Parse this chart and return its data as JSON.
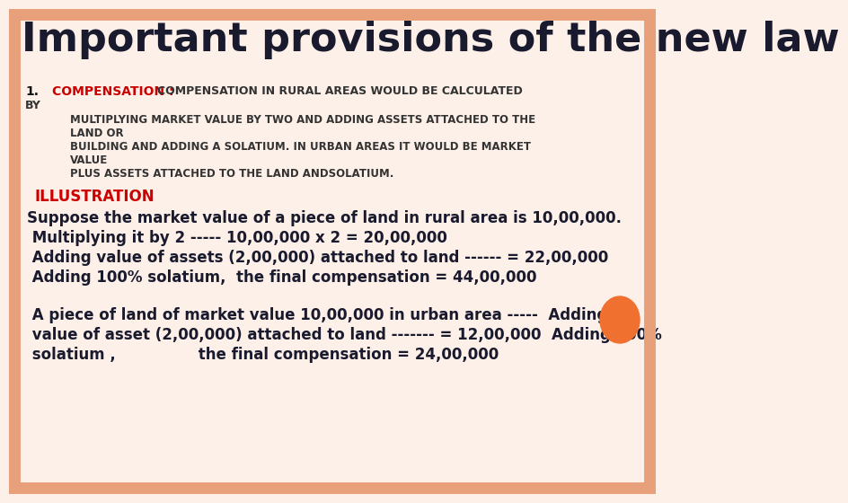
{
  "title": "Important provisions of the new law",
  "title_color": "#1a1a2e",
  "title_fontsize": 32,
  "bg_color": "#fdf0e8",
  "border_color": "#e8a07a",
  "line1_num": "1.",
  "line1_red": "COMPENSATION : ",
  "line1_rest": "COMPENSATION IN RURAL AREAS WOULD BE CALCULATED",
  "line1_by": "BY",
  "body_lines": [
    "MULTIPLYING MARKET VALUE BY TWO AND ADDING ASSETS ATTACHED TO THE",
    "LAND OR",
    "BUILDING AND ADDING A SOLATIUM. IN URBAN AREAS IT WOULD BE MARKET",
    "VALUE",
    "PLUS ASSETS ATTACHED TO THE LAND ANDSOLATIUM."
  ],
  "illustration_label": "ILLUSTRATION",
  "illustration_color": "#cc0000",
  "para1": "Suppose the market value of a piece of land in rural area is 10,00,000.",
  "para2": " Multiplying it by 2 ----- 10,00,000 x 2 = 20,00,000",
  "para3": " Adding value of assets (2,00,000) attached to land ------ = 22,00,000",
  "para4": " Adding 100% solatium,  the final compensation = 44,00,000",
  "para5a": " A piece of land of market value 10,00,000 in urban area -----  Adding",
  "para5b": " value of asset (2,00,000) attached to land ------- = 12,00,000  Adding 100%",
  "para5c": " solatium ,                the final compensation = 24,00,000",
  "circle_color": "#f07030",
  "body_fontsize": 8.5,
  "body_color": "#333333",
  "num_fontsize": 10,
  "red_fontsize": 10,
  "rest_fontsize": 9,
  "illus_fontsize": 12,
  "para_fontsize": 12
}
